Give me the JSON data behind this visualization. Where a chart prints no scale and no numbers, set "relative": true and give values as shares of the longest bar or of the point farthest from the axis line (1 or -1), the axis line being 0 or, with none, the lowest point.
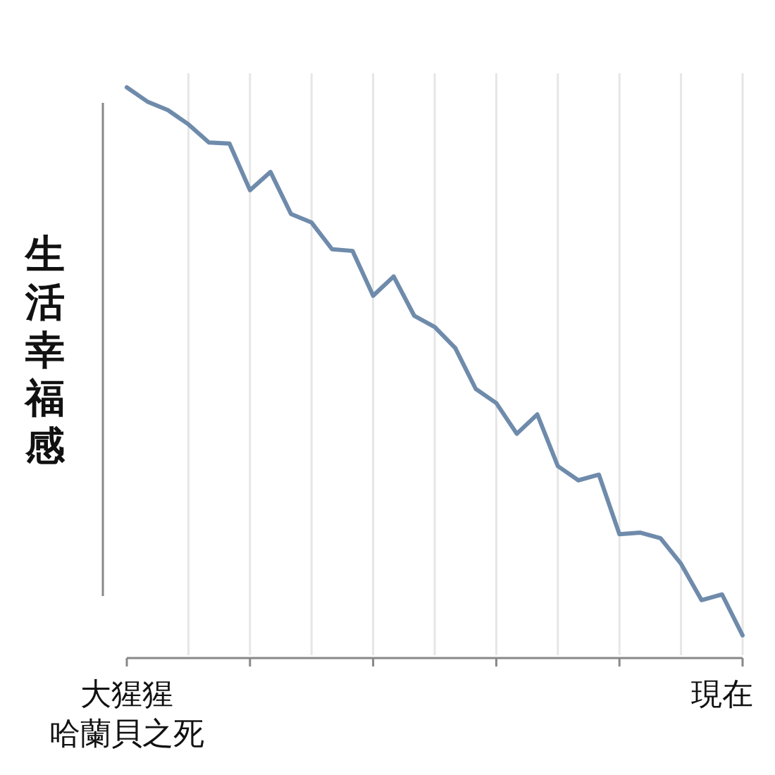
{
  "chart_data": {
    "type": "line",
    "ylabel": "生活幸福感",
    "relative": true,
    "grid": "x",
    "categories": [
      "大猩猩哈蘭貝之死",
      null,
      null,
      null,
      null,
      null,
      null,
      null,
      null,
      null,
      null,
      null,
      null,
      null,
      null,
      null,
      null,
      null,
      null,
      null,
      null,
      null,
      null,
      null,
      null,
      null,
      null,
      null,
      null,
      "現在",
      null
    ],
    "series": [
      {
        "color": "#6f8bab",
        "values": [
          1,
          0.975,
          0.96,
          0.935,
          0.903,
          0.901,
          0.819,
          0.851,
          0.777,
          0.762,
          0.715,
          0.712,
          0.633,
          0.667,
          0.598,
          0.578,
          0.541,
          0.469,
          0.444,
          0.39,
          0.424,
          0.333,
          0.308,
          0.318,
          0.213,
          0.216,
          0.206,
          0.161,
          0.097,
          0.107,
          0.035
        ]
      }
    ]
  }
}
